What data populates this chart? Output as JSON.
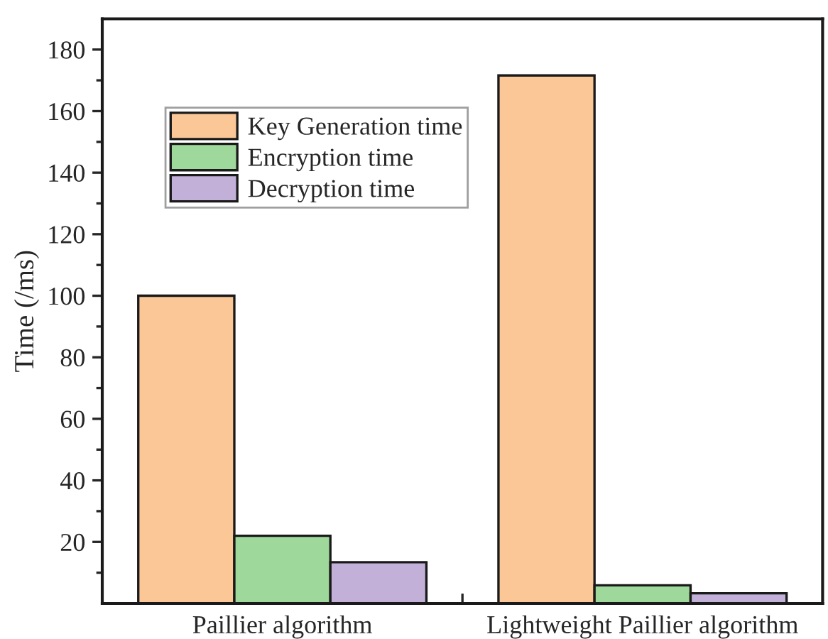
{
  "chart_data": {
    "type": "bar",
    "ylabel": "Time (/ms)",
    "categories": [
      "Paillier algorithm",
      "Lightweight Paillier algorithm"
    ],
    "series": [
      {
        "name": "Key Generation time",
        "color": "#fbc797",
        "values": [
          100,
          171.6
        ]
      },
      {
        "name": "Encryption time",
        "color": "#9ed89a",
        "values": [
          22,
          5.9
        ]
      },
      {
        "name": "Decryption time",
        "color": "#c2b0d8",
        "values": [
          13.4,
          3.3
        ]
      }
    ],
    "ylim": [
      0,
      190
    ],
    "yticks": [
      20,
      40,
      60,
      80,
      100,
      120,
      140,
      160,
      180
    ],
    "grid": false,
    "legend": "top left"
  }
}
